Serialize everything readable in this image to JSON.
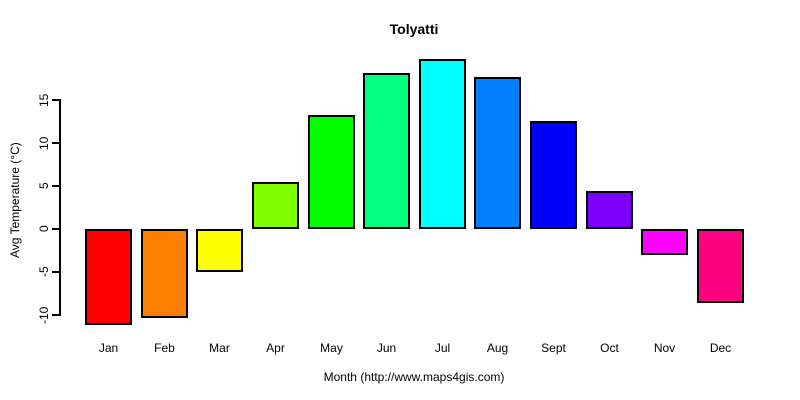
{
  "chart_data": {
    "type": "bar",
    "title": "Tolyatti",
    "xlabel": "Month (http://www.maps4gis.com)",
    "ylabel": "Avg Temperature (°C)",
    "categories": [
      "Jan",
      "Feb",
      "Mar",
      "Apr",
      "May",
      "Jun",
      "Jul",
      "Aug",
      "Sept",
      "Oct",
      "Nov",
      "Dec"
    ],
    "values": [
      -11.2,
      -10.4,
      -5,
      5.5,
      13.3,
      18.1,
      19.8,
      17.7,
      12.6,
      4.4,
      -3,
      -8.6
    ],
    "bar_colors": [
      "#FF0000",
      "#FF8000",
      "#FFFF00",
      "#80FF00",
      "#00FF00",
      "#00FF80",
      "#00FFFF",
      "#0080FF",
      "#0000FF",
      "#8000FF",
      "#FF00FF",
      "#FF0080"
    ],
    "bar_border_color": "#000000",
    "yticks": [
      -10,
      -5,
      0,
      5,
      10,
      15
    ],
    "ylim": [
      -12,
      21
    ],
    "grid": false,
    "legend": false,
    "axis_color": "#000000"
  }
}
